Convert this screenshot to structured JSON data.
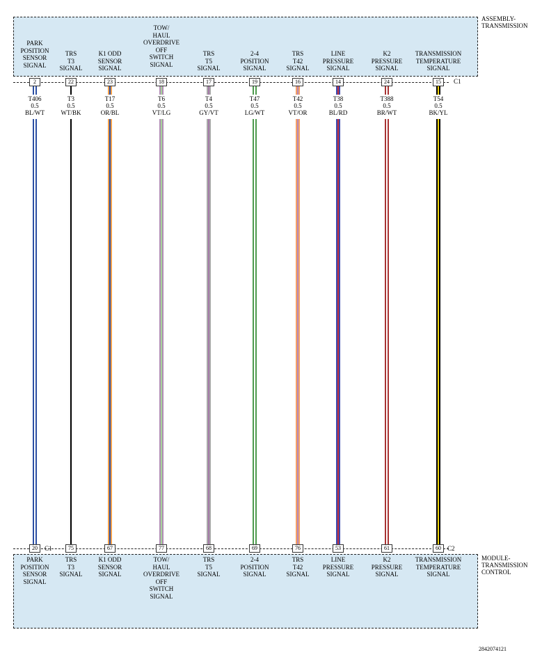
{
  "top_component": "ASSEMBLY-\nTRANSMISSION",
  "bottom_component": "MODULE-\nTRANSMISSION\nCONTROL",
  "top_connector": "C1",
  "bottom_connectors": {
    "left": "C1",
    "right": "C2"
  },
  "figure_id": "2842074121",
  "circuits": [
    {
      "signal": "PARK\nPOSITION\nSENSOR\nSIGNAL",
      "top_pin": "2",
      "circuit": "T406",
      "gauge": "0.5",
      "color_code": "BL/WT",
      "bottom_pin": "20",
      "colors": [
        "#2b4fa3",
        "#ffffff"
      ]
    },
    {
      "signal": "TRS\nT3\nSIGNAL",
      "top_pin": "22",
      "circuit": "T3",
      "gauge": "0.5",
      "color_code": "WT/BK",
      "bottom_pin": "75",
      "colors": [
        "#f4f4f4",
        "#000000"
      ]
    },
    {
      "signal": "K1 ODD\nSENSOR\nSIGNAL",
      "top_pin": "23",
      "circuit": "T17",
      "gauge": "0.5",
      "color_code": "OR/BL",
      "bottom_pin": "67",
      "colors": [
        "#f5a14a",
        "#2b4fa3"
      ]
    },
    {
      "signal": "TOW/\nHAUL\nOVERDRIVE\nOFF\nSWITCH\nSIGNAL",
      "top_pin": "18",
      "circuit": "T6",
      "gauge": "0.5",
      "color_code": "VT/LG",
      "bottom_pin": "77",
      "colors": [
        "#b08cb4",
        "#a7d39b"
      ]
    },
    {
      "signal": "TRS\nT5\nSIGNAL",
      "top_pin": "17",
      "circuit": "T4",
      "gauge": "0.5",
      "color_code": "GY/VT",
      "bottom_pin": "68",
      "colors": [
        "#a8a8a8",
        "#a57aa8"
      ]
    },
    {
      "signal": "2-4\nPOSITION\nSIGNAL",
      "top_pin": "19",
      "circuit": "T47",
      "gauge": "0.5",
      "color_code": "LG/WT",
      "bottom_pin": "69",
      "colors": [
        "#4c9a4c",
        "#ffffff"
      ]
    },
    {
      "signal": "TRS\nT42\nSIGNAL",
      "top_pin": "16",
      "circuit": "T42",
      "gauge": "0.5",
      "color_code": "VT/OR",
      "bottom_pin": "76",
      "colors": [
        "#f5a064",
        "#b58ab8"
      ]
    },
    {
      "signal": "LINE\nPRESSURE\nSIGNAL",
      "top_pin": "14",
      "circuit": "T38",
      "gauge": "0.5",
      "color_code": "BL/RD",
      "bottom_pin": "53",
      "colors": [
        "#3b4bb3",
        "#c2303a"
      ]
    },
    {
      "signal": "K2\nPRESSURE\nSIGNAL",
      "top_pin": "24",
      "circuit": "T388",
      "gauge": "0.5",
      "color_code": "BR/WT",
      "bottom_pin": "61",
      "colors": [
        "#a83232",
        "#ffffff"
      ]
    },
    {
      "signal": "TRANSMISSION\nTEMPERATURE\nSIGNAL",
      "top_pin": "15",
      "circuit": "T54",
      "gauge": "0.5",
      "color_code": "BK/YL",
      "bottom_pin": "60",
      "colors": [
        "#000000",
        "#f2d60a"
      ]
    }
  ]
}
